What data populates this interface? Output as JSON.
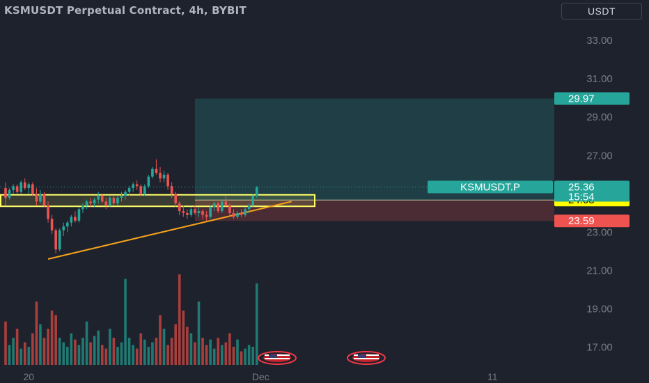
{
  "header": {
    "title": "KSMUSDT Perpetual Contract, 4h, BYBIT",
    "currency": "USDT"
  },
  "colors": {
    "background": "#1e222d",
    "up": "#26a69a",
    "down": "#ef5350",
    "volume_up": "#1f7a72",
    "volume_down": "#a93f3d",
    "target_zone": "#26a69a",
    "stop_zone": "#ef5350",
    "support_box": "#ffff66",
    "trendline": "#f7a21b"
  },
  "chart_data": {
    "type": "candlestick",
    "symbol": "KSMUSDT.P",
    "interval": "4h",
    "exchange": "BYBIT",
    "y_ticks": [
      "33.00",
      "31.00",
      "29.00",
      "27.00",
      "25.00",
      "23.00",
      "21.00",
      "19.00",
      "17.00"
    ],
    "y_tick_values": [
      33,
      31,
      29,
      27,
      25,
      23,
      21,
      19,
      17
    ],
    "ylim": [
      15.5,
      34.6
    ],
    "x_labels": [
      {
        "text": "20",
        "index": 6
      },
      {
        "text": "Dec",
        "index": 66
      },
      {
        "text": "11",
        "index": 126
      }
    ],
    "candles": [
      [
        25.3,
        25.6,
        24.4,
        24.8
      ],
      [
        24.8,
        25.3,
        24.7,
        25.2
      ],
      [
        25.2,
        25.5,
        25.0,
        25.4
      ],
      [
        25.4,
        25.5,
        25.0,
        25.1
      ],
      [
        25.1,
        25.7,
        25.0,
        25.6
      ],
      [
        25.6,
        25.8,
        25.2,
        25.3
      ],
      [
        25.3,
        25.6,
        25.0,
        25.5
      ],
      [
        25.5,
        25.6,
        24.9,
        25.0
      ],
      [
        25.0,
        25.3,
        24.4,
        24.6
      ],
      [
        24.6,
        25.2,
        24.5,
        25.0
      ],
      [
        25.0,
        25.1,
        24.3,
        24.4
      ],
      [
        24.4,
        24.6,
        23.5,
        23.7
      ],
      [
        23.7,
        23.9,
        22.9,
        23.1
      ],
      [
        23.1,
        23.2,
        21.9,
        22.1
      ],
      [
        22.1,
        23.2,
        22.0,
        23.1
      ],
      [
        23.1,
        23.5,
        22.8,
        23.3
      ],
      [
        23.3,
        23.6,
        23.0,
        23.5
      ],
      [
        23.5,
        23.9,
        23.3,
        23.8
      ],
      [
        23.8,
        24.1,
        23.5,
        23.6
      ],
      [
        23.6,
        24.3,
        23.5,
        24.2
      ],
      [
        24.2,
        24.5,
        24.0,
        24.4
      ],
      [
        24.4,
        24.7,
        24.2,
        24.6
      ],
      [
        24.6,
        24.8,
        24.3,
        24.5
      ],
      [
        24.5,
        24.8,
        24.3,
        24.7
      ],
      [
        24.7,
        25.1,
        24.5,
        24.9
      ],
      [
        24.9,
        25.0,
        24.5,
        24.6
      ],
      [
        24.6,
        24.8,
        24.2,
        24.4
      ],
      [
        24.4,
        24.9,
        24.3,
        24.8
      ],
      [
        24.8,
        24.9,
        24.4,
        24.5
      ],
      [
        24.5,
        24.9,
        24.4,
        24.8
      ],
      [
        24.8,
        25.1,
        24.6,
        24.9
      ],
      [
        24.9,
        25.2,
        24.7,
        25.1
      ],
      [
        25.1,
        25.4,
        24.9,
        25.3
      ],
      [
        25.3,
        25.6,
        25.1,
        25.5
      ],
      [
        25.5,
        25.7,
        25.2,
        25.4
      ],
      [
        25.4,
        25.5,
        24.9,
        25.0
      ],
      [
        25.0,
        25.5,
        24.9,
        25.4
      ],
      [
        25.4,
        26.0,
        25.3,
        25.9
      ],
      [
        25.9,
        26.4,
        25.8,
        26.3
      ],
      [
        26.3,
        26.8,
        26.0,
        26.1
      ],
      [
        26.1,
        26.4,
        25.6,
        25.8
      ],
      [
        25.8,
        26.2,
        25.6,
        26.0
      ],
      [
        26.0,
        26.1,
        25.2,
        25.4
      ],
      [
        25.4,
        25.6,
        24.8,
        25.0
      ],
      [
        25.0,
        25.1,
        24.3,
        24.5
      ],
      [
        24.5,
        24.6,
        23.9,
        24.1
      ],
      [
        24.1,
        24.4,
        23.8,
        24.0
      ],
      [
        24.0,
        24.2,
        23.7,
        23.9
      ],
      [
        23.9,
        24.3,
        23.8,
        24.2
      ],
      [
        24.2,
        24.4,
        23.9,
        24.0
      ],
      [
        24.0,
        24.3,
        23.8,
        24.1
      ],
      [
        24.1,
        24.2,
        23.7,
        23.9
      ],
      [
        23.9,
        24.1,
        23.6,
        23.8
      ],
      [
        23.8,
        24.4,
        23.7,
        24.3
      ],
      [
        24.3,
        24.6,
        24.1,
        24.5
      ],
      [
        24.5,
        24.6,
        24.0,
        24.1
      ],
      [
        24.1,
        24.7,
        24.0,
        24.6
      ],
      [
        24.6,
        24.9,
        24.3,
        24.4
      ],
      [
        24.4,
        24.5,
        23.8,
        24.0
      ],
      [
        24.0,
        24.2,
        23.7,
        23.8
      ],
      [
        23.8,
        24.1,
        23.7,
        24.0
      ],
      [
        24.0,
        24.2,
        23.8,
        23.9
      ],
      [
        23.9,
        24.3,
        23.8,
        24.2
      ],
      [
        24.2,
        24.5,
        24.0,
        24.4
      ],
      [
        24.4,
        25.0,
        24.3,
        24.9
      ],
      [
        24.9,
        25.4,
        24.8,
        25.36
      ]
    ],
    "volumes": [
      48,
      22,
      30,
      40,
      18,
      25,
      20,
      35,
      70,
      45,
      30,
      40,
      60,
      55,
      30,
      25,
      20,
      35,
      28,
      22,
      30,
      48,
      25,
      32,
      38,
      22,
      18,
      40,
      30,
      20,
      25,
      95,
      30,
      22,
      18,
      35,
      28,
      20,
      25,
      30,
      55,
      40,
      22,
      30,
      45,
      100,
      60,
      42,
      35,
      25,
      70,
      30,
      22,
      28,
      18,
      30,
      22,
      25,
      35,
      20,
      28,
      15,
      18,
      22,
      20,
      90
    ],
    "current_price": {
      "label": "KSMUSDT.P",
      "value": "25.36",
      "countdown": "15:54"
    },
    "price_labels": {
      "target": "29.97",
      "entry": "24.68",
      "stop": "23.59"
    },
    "position_tool": {
      "target": 29.97,
      "entry": 24.68,
      "stop": 23.59,
      "start_index": 49
    },
    "support_box": {
      "top": 24.95,
      "bottom": 24.35,
      "end_index": 80
    },
    "trendline": {
      "from_index": 11,
      "from_value": 21.6,
      "to_index": 74,
      "to_value": 24.6
    }
  }
}
